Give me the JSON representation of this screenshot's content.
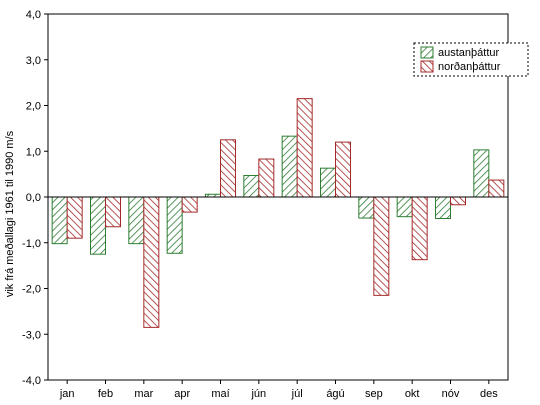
{
  "chart_data": {
    "type": "bar",
    "categories": [
      "jan",
      "feb",
      "mar",
      "apr",
      "maí",
      "jún",
      "júl",
      "ágú",
      "sep",
      "okt",
      "nóv",
      "des"
    ],
    "series": [
      {
        "name": "austanþáttur",
        "color": "#2e7d32",
        "pattern": "diagonal-hatch",
        "values": [
          -1.02,
          -1.25,
          -1.02,
          -1.23,
          0.06,
          0.47,
          1.33,
          0.63,
          -0.46,
          -0.43,
          -0.47,
          1.03
        ]
      },
      {
        "name": "norðanþáttur",
        "color": "#a52a2a",
        "pattern": "diagonal-hatch",
        "values": [
          -0.9,
          -0.65,
          -2.85,
          -0.33,
          1.25,
          0.83,
          2.15,
          1.2,
          -2.15,
          -1.37,
          -0.17,
          0.37
        ]
      }
    ],
    "yticks": [
      "-4,0",
      "-3,0",
      "-2,0",
      "-1,0",
      "0,0",
      "1,0",
      "2,0",
      "3,0",
      "4,0"
    ],
    "ylim": [
      -4,
      4
    ],
    "xlabel": "",
    "ylabel": "vik frá meðallagi 1961 til 1990 m/s",
    "title": "",
    "grid": false,
    "legend": "top-right"
  }
}
